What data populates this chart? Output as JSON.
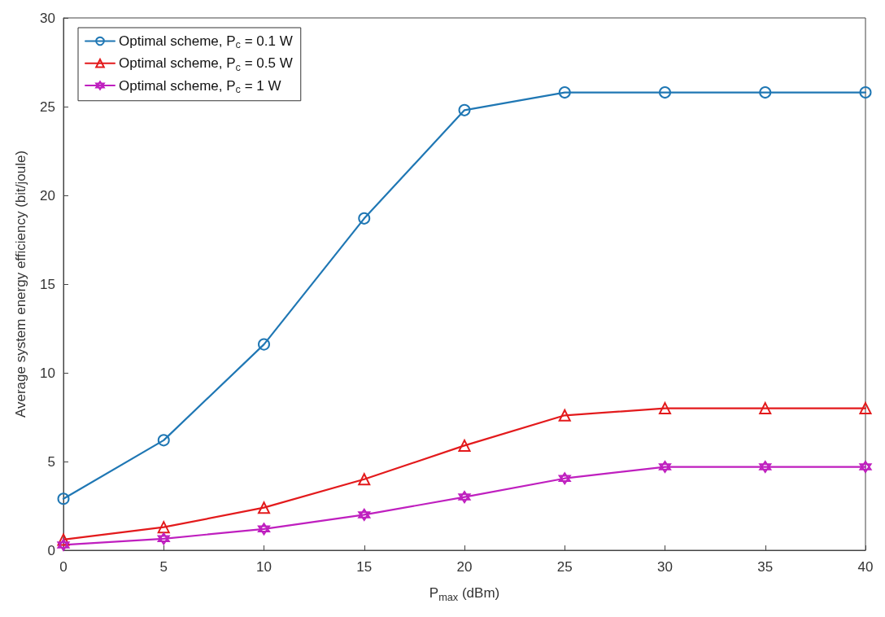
{
  "chart_data": {
    "type": "line",
    "xlabel": "P$_{max}$ (dBm)",
    "ylabel": "Average system energy efficiency (bit/joule)",
    "x": [
      0,
      5,
      10,
      15,
      20,
      25,
      30,
      35,
      40
    ],
    "series": [
      {
        "name": "Optimal scheme, P$_{c}$ = 0.1 W",
        "color": "#1f77b4",
        "marker": "circle",
        "values": [
          2.9,
          6.2,
          11.6,
          18.7,
          24.8,
          25.8,
          25.8,
          25.8,
          25.8
        ]
      },
      {
        "name": "Optimal scheme, P$_{c}$ = 0.5 W",
        "color": "#e31a1c",
        "marker": "triangle",
        "values": [
          0.6,
          1.3,
          2.4,
          4.0,
          5.9,
          7.6,
          8.0,
          8.0,
          8.0
        ]
      },
      {
        "name": "Optimal scheme, P$_{c}$ = 1 W",
        "color": "#bf1fbf",
        "marker": "star",
        "values": [
          0.3,
          0.65,
          1.2,
          2.0,
          3.0,
          4.05,
          4.7,
          4.7,
          4.7
        ]
      }
    ],
    "xlim": [
      0,
      40
    ],
    "xticks": [
      0,
      5,
      10,
      15,
      20,
      25,
      30,
      35,
      40
    ],
    "ylim": [
      0,
      30
    ],
    "yticks": [
      0,
      5,
      10,
      15,
      20,
      25,
      30
    ],
    "grid": false,
    "legend": "top left",
    "line_style": "solid"
  }
}
